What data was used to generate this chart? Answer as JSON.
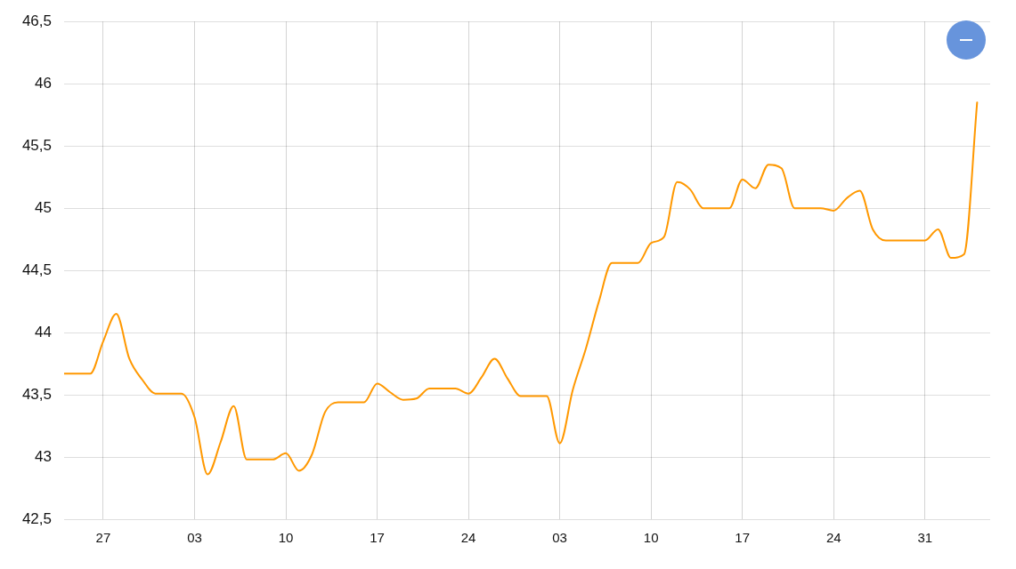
{
  "chart_data": {
    "type": "line",
    "color": "#ff9800",
    "marker": "none",
    "line_style": "solid",
    "grid": true,
    "x": [
      "--01-24",
      "--01-25",
      "--01-26",
      "--01-27",
      "--01-28",
      "--01-29",
      "--01-30",
      "--01-31",
      "--02-01",
      "--02-02",
      "--02-03",
      "--02-04",
      "--02-05",
      "--02-06",
      "--02-07",
      "--02-08",
      "--02-09",
      "--02-10",
      "--02-11",
      "--02-12",
      "--02-13",
      "--02-14",
      "--02-15",
      "--02-16",
      "--02-17",
      "--02-18",
      "--02-19",
      "--02-20",
      "--02-21",
      "--02-22",
      "--02-23",
      "--02-24",
      "--02-25",
      "--02-26",
      "--02-27",
      "--02-28",
      "--03-01",
      "--03-02",
      "--03-03",
      "--03-04",
      "--03-05",
      "--03-06",
      "--03-07",
      "--03-08",
      "--03-09",
      "--03-10",
      "--03-11",
      "--03-12",
      "--03-13",
      "--03-14",
      "--03-15",
      "--03-16",
      "--03-17",
      "--03-18",
      "--03-19",
      "--03-20",
      "--03-21",
      "--03-22",
      "--03-23",
      "--03-24",
      "--03-25",
      "--03-26",
      "--03-27",
      "--03-28",
      "--03-29",
      "--03-30",
      "--03-31",
      "--04-01",
      "--04-02",
      "--04-03",
      "--04-04"
    ],
    "values": [
      43.67,
      43.67,
      43.67,
      43.93,
      44.15,
      43.79,
      43.62,
      43.51,
      43.51,
      43.51,
      43.32,
      42.86,
      43.12,
      43.41,
      42.98,
      42.98,
      42.98,
      43.03,
      42.89,
      43.02,
      43.36,
      43.44,
      43.44,
      43.44,
      43.59,
      43.52,
      43.46,
      43.47,
      43.55,
      43.55,
      43.55,
      43.51,
      43.64,
      43.79,
      43.63,
      43.49,
      43.49,
      43.49,
      43.11,
      43.54,
      43.87,
      44.25,
      44.56,
      44.56,
      44.56,
      44.72,
      44.77,
      45.21,
      45.15,
      45.0,
      45.0,
      45.0,
      45.23,
      45.16,
      45.35,
      45.32,
      45.0,
      45.0,
      45.0,
      44.98,
      45.08,
      45.14,
      44.83,
      44.74,
      44.74,
      44.74,
      44.74,
      44.83,
      44.6,
      44.63,
      45.85
    ],
    "xlim": [
      "--01-24",
      "--04-05"
    ],
    "xticks": [
      {
        "value": "--01-27",
        "label": "27"
      },
      {
        "value": "--02-03",
        "label": "03"
      },
      {
        "value": "--02-10",
        "label": "10"
      },
      {
        "value": "--02-17",
        "label": "17"
      },
      {
        "value": "--02-24",
        "label": "24"
      },
      {
        "value": "--03-03",
        "label": "03"
      },
      {
        "value": "--03-10",
        "label": "10"
      },
      {
        "value": "--03-17",
        "label": "17"
      },
      {
        "value": "--03-24",
        "label": "24"
      },
      {
        "value": "--03-31",
        "label": "31"
      }
    ],
    "ylim": [
      42.5,
      46.5
    ],
    "yticks": [
      {
        "value": 42.5,
        "label": "42,5"
      },
      43,
      {
        "value": 43.5,
        "label": "43,5"
      },
      44,
      {
        "value": 44.5,
        "label": "44,5"
      },
      45,
      {
        "value": 45.5,
        "label": "45,5"
      },
      46,
      {
        "value": 46.5,
        "label": "46,5"
      }
    ]
  }
}
